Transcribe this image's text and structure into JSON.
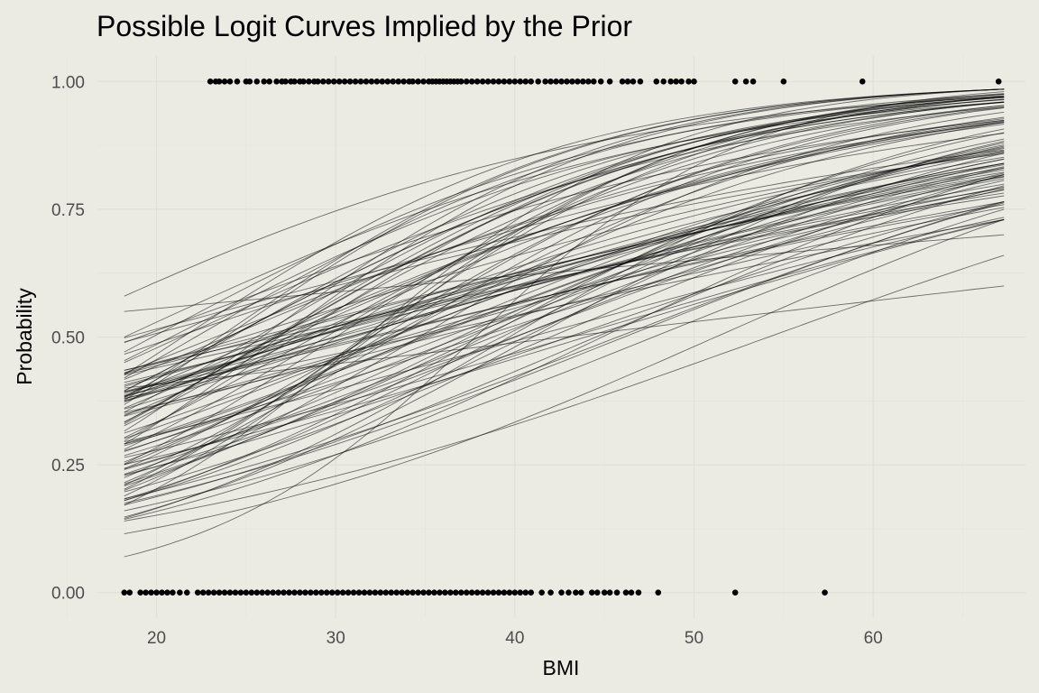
{
  "chart_data": {
    "type": "line",
    "title": "Possible Logit Curves Implied by the Prior",
    "xlabel": "BMI",
    "ylabel": "Probability",
    "xlim": [
      16.7,
      68.5
    ],
    "ylim": [
      -0.05,
      1.05
    ],
    "x_ticks": [
      20,
      30,
      40,
      50,
      60
    ],
    "x_tick_labels": [
      "20",
      "30",
      "40",
      "50",
      "60"
    ],
    "y_ticks": [
      0,
      0.25,
      0.5,
      0.75,
      1
    ],
    "y_tick_labels": [
      "0.00",
      "0.25",
      "0.50",
      "0.75",
      "1.00"
    ],
    "grid": true,
    "curve_x_range": [
      18.2,
      67.3
    ],
    "curve_count": 100,
    "curves_sample": [
      {
        "p_at_18.2": 0.58,
        "p_at_67.3": 0.97
      },
      {
        "p_at_18.2": 0.55,
        "p_at_67.3": 0.7
      },
      {
        "p_at_18.2": 0.5,
        "p_at_67.3": 0.96
      },
      {
        "p_at_18.2": 0.45,
        "p_at_67.3": 0.95
      },
      {
        "p_at_18.2": 0.42,
        "p_at_67.3": 0.975
      },
      {
        "p_at_18.2": 0.4,
        "p_at_67.3": 0.6
      },
      {
        "p_at_18.2": 0.33,
        "p_at_67.3": 0.97
      },
      {
        "p_at_18.2": 0.28,
        "p_at_67.3": 0.96
      },
      {
        "p_at_18.2": 0.25,
        "p_at_67.3": 0.93
      },
      {
        "p_at_18.2": 0.21,
        "p_at_67.3": 0.97
      },
      {
        "p_at_18.2": 0.2,
        "p_at_67.3": 0.94
      },
      {
        "p_at_18.2": 0.18,
        "p_at_67.3": 0.9
      },
      {
        "p_at_18.2": 0.16,
        "p_at_67.3": 0.75
      },
      {
        "p_at_18.2": 0.14,
        "p_at_67.3": 0.66
      },
      {
        "p_at_18.2": 0.115,
        "p_at_67.3": 0.73
      },
      {
        "p_at_18.2": 0.07,
        "p_at_67.3": 0.98
      }
    ],
    "observed_points": {
      "y1_bmi": [
        23.0,
        23.3,
        23.5,
        23.8,
        24.1,
        24.5,
        25.0,
        25.2,
        25.6,
        26.0,
        26.3,
        26.7,
        27.0,
        27.2,
        27.5,
        27.7,
        28.0,
        28.2,
        28.5,
        28.8,
        29.0,
        29.3,
        29.6,
        29.9,
        30.2,
        30.5,
        30.8,
        31.1,
        31.4,
        31.7,
        32.0,
        32.3,
        32.6,
        32.9,
        33.2,
        33.5,
        33.8,
        34.1,
        34.3,
        34.6,
        34.9,
        35.2,
        35.4,
        35.6,
        35.8,
        36.0,
        36.2,
        36.4,
        36.6,
        36.8,
        37.0,
        37.3,
        37.6,
        37.9,
        38.2,
        38.5,
        38.8,
        39.1,
        39.4,
        39.7,
        40.0,
        40.3,
        40.6,
        40.9,
        41.3,
        41.7,
        42.0,
        42.3,
        42.6,
        42.9,
        43.2,
        43.5,
        43.8,
        44.1,
        44.4,
        44.8,
        45.3,
        46.0,
        46.3,
        46.6,
        47.0,
        47.9,
        48.3,
        48.7,
        49.0,
        49.3,
        49.7,
        50.0,
        52.3,
        52.9,
        53.3,
        55.0,
        59.4,
        67.0
      ],
      "y0_bmi": [
        18.2,
        18.5,
        19.1,
        19.4,
        19.7,
        20.0,
        20.3,
        20.6,
        20.9,
        21.3,
        21.7,
        22.3,
        22.6,
        22.9,
        23.2,
        23.5,
        23.8,
        24.1,
        24.4,
        24.7,
        25.0,
        25.3,
        25.6,
        25.9,
        26.2,
        26.5,
        26.8,
        27.1,
        27.4,
        27.7,
        28.0,
        28.3,
        28.6,
        28.9,
        29.2,
        29.5,
        29.8,
        30.1,
        30.4,
        30.7,
        31.0,
        31.3,
        31.6,
        31.9,
        32.2,
        32.5,
        32.8,
        33.1,
        33.4,
        33.7,
        34.0,
        34.3,
        34.6,
        34.9,
        35.2,
        35.5,
        35.8,
        36.1,
        36.4,
        36.7,
        37.0,
        37.3,
        37.6,
        37.9,
        38.2,
        38.5,
        38.8,
        39.1,
        39.4,
        39.7,
        40.0,
        40.3,
        40.6,
        40.9,
        41.5,
        42.0,
        42.6,
        43.0,
        43.4,
        43.7,
        44.3,
        44.6,
        45.0,
        45.3,
        45.7,
        46.2,
        46.5,
        46.9,
        48.0,
        52.3,
        57.3
      ]
    }
  }
}
